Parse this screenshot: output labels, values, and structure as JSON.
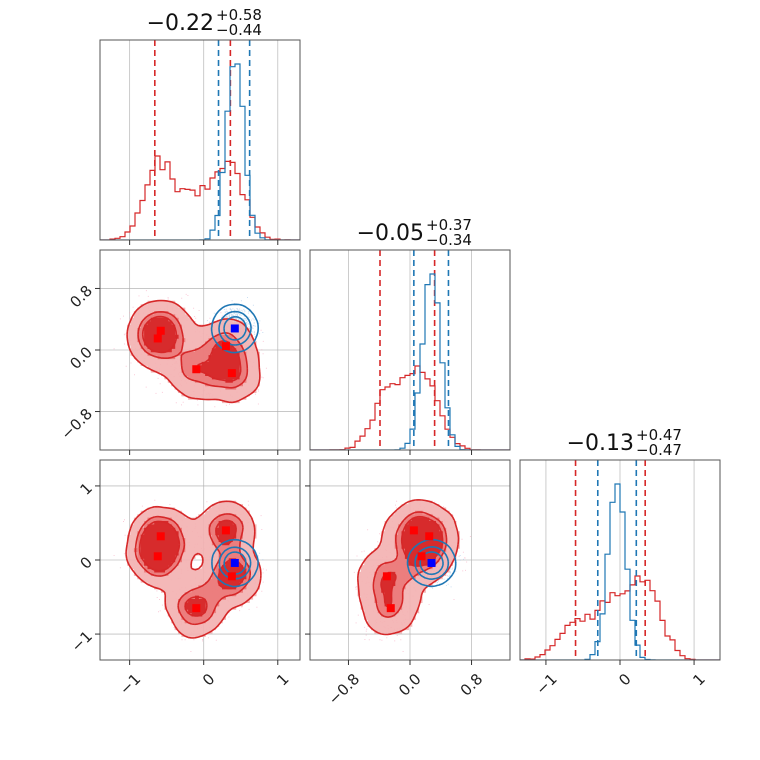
{
  "chart_data": {
    "type": "corner",
    "parameters": [
      "",
      "",
      ""
    ],
    "titles": [
      {
        "main": "−0.22",
        "plus": "+0.58",
        "minus": "−0.44"
      },
      {
        "main": "−0.05",
        "plus": "+0.37",
        "minus": "−0.34"
      },
      {
        "main": "−0.13",
        "plus": "+0.47",
        "minus": "−0.47"
      }
    ],
    "ranges": [
      [
        -1.4,
        1.3
      ],
      [
        -1.3,
        1.3
      ],
      [
        -1.35,
        1.35
      ]
    ],
    "ticks": [
      {
        "values": [
          -1,
          0,
          1
        ],
        "labels": [
          "−1",
          "0",
          "1"
        ]
      },
      {
        "values": [
          -0.8,
          0.0,
          0.8
        ],
        "labels": [
          "−0.8",
          "0.0",
          "0.8"
        ]
      },
      {
        "values": [
          -1,
          0,
          1
        ],
        "labels": [
          "−1",
          "0",
          "1"
        ]
      }
    ],
    "series": [
      {
        "color": "#d62728",
        "fill": "filled-contours",
        "quantiles": [
          [
            -0.66,
            0.36
          ],
          [
            -0.39,
            0.32
          ],
          [
            -0.6,
            0.34
          ]
        ],
        "modes": [
          [
            -0.58,
            0.25,
            0.32
          ],
          [
            -0.62,
            0.15,
            0.05
          ],
          [
            -0.1,
            -0.25,
            -0.65
          ],
          [
            0.38,
            -0.3,
            -0.22
          ],
          [
            0.3,
            0.05,
            0.4
          ]
        ]
      },
      {
        "color": "#1f77b4",
        "fill": "line-contours",
        "quantiles": [
          [
            0.2,
            0.62
          ],
          [
            0.05,
            0.5
          ],
          [
            -0.3,
            0.22
          ]
        ],
        "modes": [
          [
            0.42,
            0.28,
            -0.04
          ]
        ]
      }
    ],
    "grid": true
  }
}
